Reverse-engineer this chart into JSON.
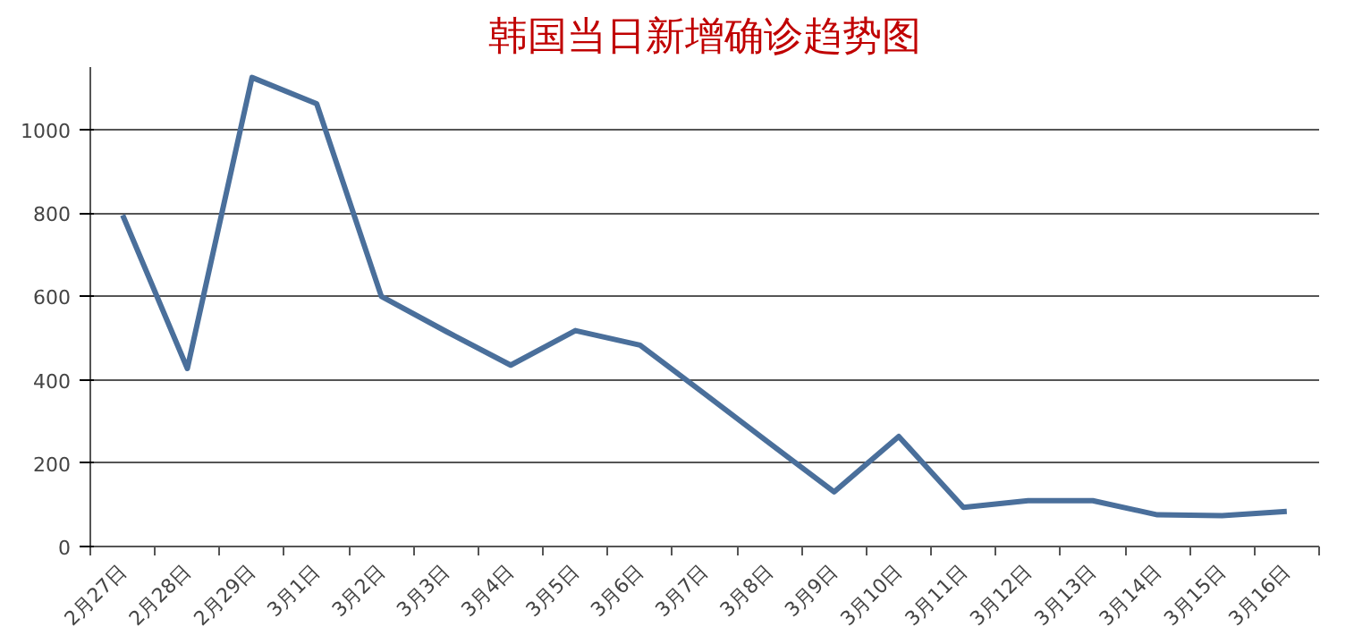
{
  "chart_data": {
    "type": "line",
    "title": "韩国当日新增确诊趋势图",
    "categories": [
      "2月27日",
      "2月28日",
      "2月29日",
      "3月1日",
      "3月2日",
      "3月3日",
      "3月4日",
      "3月5日",
      "3月6日",
      "3月7日",
      "3月8日",
      "3月9日",
      "3月10日",
      "3月11日",
      "3月12日",
      "3月13日",
      "3月14日",
      "3月15日",
      "3月16日"
    ],
    "series": [
      {
        "color": "#4a6f9b",
        "values": [
          795,
          427,
          1125,
          1062,
          600,
          516,
          435,
          518,
          483,
          366,
          248,
          131,
          264,
          94,
          110,
          110,
          76,
          74,
          84
        ]
      }
    ],
    "ylim": [
      0,
      1150
    ],
    "yticks": [
      0,
      200,
      400,
      600,
      800,
      1000
    ],
    "grid": "y",
    "marker": "none",
    "line_style": "solid"
  }
}
